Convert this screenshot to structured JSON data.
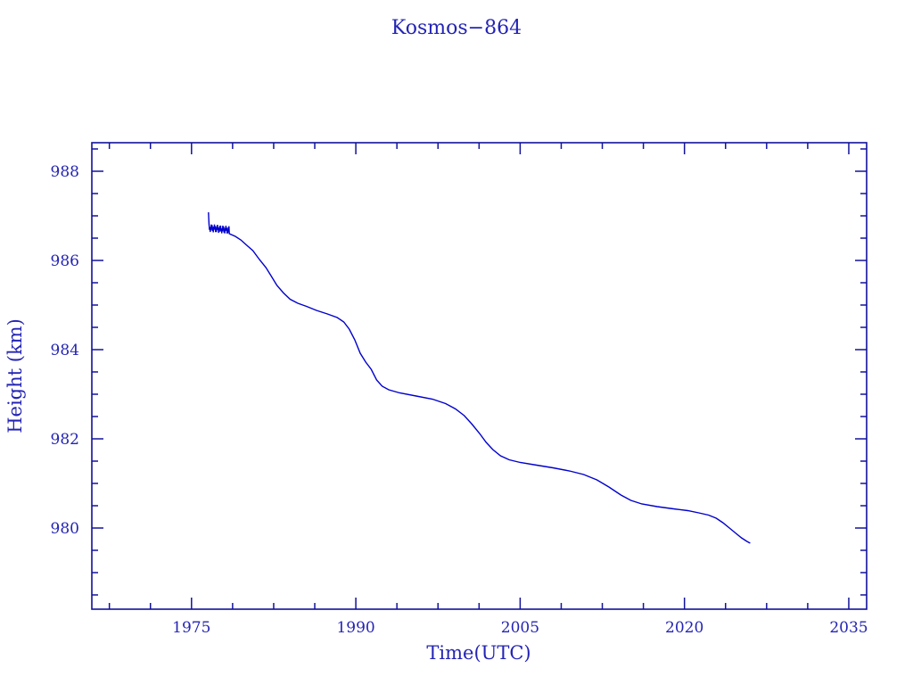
{
  "chart_data": {
    "type": "line",
    "title": "Kosmos−864",
    "xlabel": "Time(UTC)",
    "ylabel": "Height (km)",
    "xlim": [
      1965.9,
      2036.63
    ],
    "ylim": [
      978.18,
      988.64
    ],
    "x_major_ticks": [
      1975,
      1990,
      2005,
      2020,
      2035
    ],
    "x_major_tick_labels": [
      "1975",
      "1990",
      "2005",
      "2020",
      "2035"
    ],
    "x_minor_tick_interval": 3.75,
    "y_major_ticks": [
      980,
      982,
      984,
      986,
      988
    ],
    "y_major_tick_labels": [
      "980",
      "982",
      "984",
      "986",
      "988"
    ],
    "y_minor_tick_interval": 0.5,
    "grid": "off",
    "legend": "none",
    "frame_color": "#12129a",
    "text_color": "#2424b4",
    "line_color": "#0000cd",
    "series": {
      "name": "orbit-height",
      "spike": [
        [
          1976.55,
          987.08
        ],
        [
          1976.6,
          986.78
        ]
      ],
      "noise_band": {
        "t_start": 1976.6,
        "t_end": 1978.42,
        "center": 986.73,
        "drift": -0.05,
        "amplitude": 0.09,
        "zigzag_steps": 52
      },
      "points": [
        [
          1978.45,
          986.6
        ],
        [
          1979.0,
          986.54
        ],
        [
          1979.5,
          986.46
        ],
        [
          1980.0,
          986.35
        ],
        [
          1980.6,
          986.22
        ],
        [
          1981.2,
          986.02
        ],
        [
          1981.8,
          985.84
        ],
        [
          1982.3,
          985.64
        ],
        [
          1982.8,
          985.44
        ],
        [
          1983.4,
          985.27
        ],
        [
          1984.0,
          985.13
        ],
        [
          1984.7,
          985.04
        ],
        [
          1985.5,
          984.97
        ],
        [
          1986.4,
          984.88
        ],
        [
          1987.4,
          984.8
        ],
        [
          1988.3,
          984.72
        ],
        [
          1988.9,
          984.62
        ],
        [
          1989.4,
          984.46
        ],
        [
          1989.9,
          984.22
        ],
        [
          1990.4,
          983.92
        ],
        [
          1990.9,
          983.72
        ],
        [
          1991.4,
          983.56
        ],
        [
          1991.9,
          983.32
        ],
        [
          1992.4,
          983.18
        ],
        [
          1993.0,
          983.1
        ],
        [
          1994.0,
          983.03
        ],
        [
          1995.5,
          982.96
        ],
        [
          1997.0,
          982.89
        ],
        [
          1998.2,
          982.79
        ],
        [
          1999.1,
          982.67
        ],
        [
          1999.9,
          982.52
        ],
        [
          2000.6,
          982.33
        ],
        [
          2001.3,
          982.12
        ],
        [
          2001.9,
          981.92
        ],
        [
          2002.5,
          981.76
        ],
        [
          2003.2,
          981.62
        ],
        [
          2004.0,
          981.53
        ],
        [
          2005.0,
          981.47
        ],
        [
          2006.5,
          981.41
        ],
        [
          2008.0,
          981.35
        ],
        [
          2009.5,
          981.28
        ],
        [
          2010.8,
          981.2
        ],
        [
          2012.0,
          981.08
        ],
        [
          2013.1,
          980.92
        ],
        [
          2014.2,
          980.74
        ],
        [
          2015.1,
          980.62
        ],
        [
          2016.1,
          980.54
        ],
        [
          2017.5,
          980.48
        ],
        [
          2019.0,
          980.43
        ],
        [
          2020.3,
          980.39
        ],
        [
          2021.3,
          980.34
        ],
        [
          2022.2,
          980.29
        ],
        [
          2022.9,
          980.22
        ],
        [
          2023.5,
          980.12
        ],
        [
          2024.1,
          980.0
        ],
        [
          2024.7,
          979.88
        ],
        [
          2025.2,
          979.78
        ],
        [
          2025.7,
          979.7
        ],
        [
          2026.0,
          979.66
        ]
      ]
    }
  }
}
